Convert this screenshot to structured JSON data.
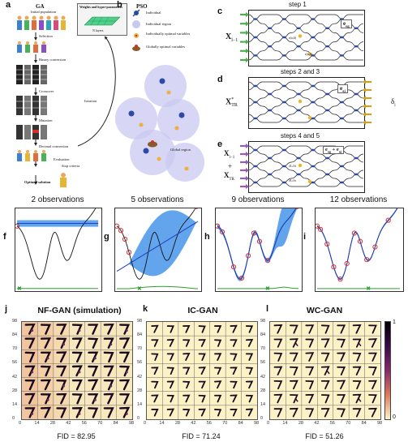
{
  "panels": {
    "a": "a",
    "b": "b",
    "c": "c",
    "d": "d",
    "e": "e",
    "f": "f",
    "g": "g",
    "h": "h",
    "i": "i",
    "j": "j",
    "k": "k",
    "l": "l"
  },
  "ga": {
    "title": "GA",
    "initial_population": "Initial population",
    "weights_box": "Weights and hyper-parameters",
    "layers": "N layers",
    "selection": "Selection",
    "binary": "Binary conversion",
    "crossover": "Crossover",
    "iteration": "Iteration",
    "mutation": "Mutation",
    "decimal": "Decimal conversion",
    "evaluation": "Evaluation",
    "stop": "Stop criteria",
    "optimal": "Optimal solution"
  },
  "pso": {
    "title": "PSO",
    "individual": "Individual",
    "individual_region": "Individual region",
    "individually_optimal": "Individually optimal variables",
    "globally_optimal": "Globally optimal variables",
    "global_region": "Global region"
  },
  "steps": {
    "c_title": "step 1",
    "c_in": "X",
    "c_in_sub": "l−1",
    "c_out": "e",
    "c_out_sub": "og",
    "c_mid1": "ε(a,b)",
    "c_mid2": "ε(a,b)",
    "d_title": "steps 2 and 3",
    "d_in": "X",
    "d_in_sub": "TR",
    "d_in_sup": "*",
    "d_out": "e",
    "d_out_sub": "aj",
    "d_delta": "δ",
    "d_delta_sub": "l",
    "e_title": "steps 4 and 5",
    "e_in1": "X",
    "e_in1_sub": "l−1",
    "e_plus": "+",
    "e_in2": "X",
    "e_in2_sub": "TR",
    "e_out": "e",
    "e_out_sub": "og",
    "e_out2": "+ e",
    "e_out2_sub": "aj",
    "e_mid1": "∂L/∂ε",
    "e_mid2": "∂L/∂ε"
  },
  "observations": [
    {
      "title": "2 observations"
    },
    {
      "title": "5 observations"
    },
    {
      "title": "9 observations"
    },
    {
      "title": "12 observations"
    }
  ],
  "gans": [
    {
      "title": "NF-GAN (simulation)",
      "fid": "FID = 82.95"
    },
    {
      "title": "IC-GAN",
      "fid": "FID = 71.24"
    },
    {
      "title": "WC-GAN",
      "fid": "FID = 51.26"
    }
  ],
  "axis_ticks": [
    "0",
    "14",
    "28",
    "42",
    "56",
    "70",
    "84",
    "98"
  ],
  "colorbar": {
    "max": "1",
    "min": "0"
  },
  "colors": {
    "blue_band": "#3b8fe8",
    "curve_black": "#111111",
    "curve_blue": "#1f3fbf",
    "acq_green": "#2ea02e",
    "obs_red": "#d83030",
    "gan_bg": "#fbf2c6",
    "nf_tint": "#e9a27d"
  }
}
